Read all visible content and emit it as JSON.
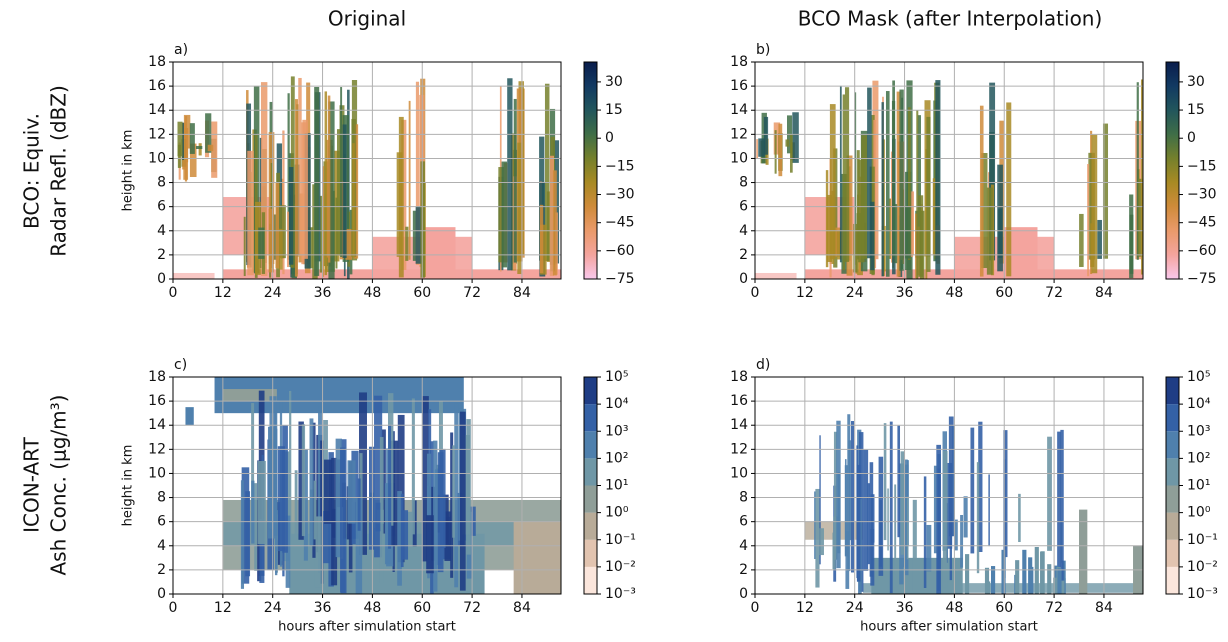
{
  "column_titles": [
    "Original",
    "BCO Mask (after Interpolation)"
  ],
  "row_labels": [
    [
      "BCO: Equiv.",
      "Radar Refl. (dBZ)"
    ],
    [
      "ICON-ART",
      "Ash Conc. (μg/m³)"
    ]
  ],
  "chart_data": [
    {
      "type": "heatmap",
      "panel": "a)",
      "ylabel": "height in km",
      "xlim": [
        0,
        93.4
      ],
      "xticks": [
        0,
        12,
        24,
        36,
        48,
        60,
        72,
        84
      ],
      "ylim": [
        0,
        18
      ],
      "yticks": [
        0,
        2,
        4,
        6,
        8,
        10,
        12,
        14,
        16,
        18
      ],
      "grid": true,
      "colorbar": {
        "scale": "linear",
        "lim": [
          -75,
          40.6
        ],
        "ticks": [
          {
            "value": -75,
            "label": "−75"
          },
          {
            "value": -60,
            "label": "−60"
          },
          {
            "value": -45,
            "label": "−45"
          },
          {
            "value": -30,
            "label": "−30"
          },
          {
            "value": -15,
            "label": "−15"
          },
          0,
          15,
          30
        ],
        "colors": [
          "#f9c8ec",
          "#f4a49e",
          "#ea9a6a",
          "#cf8b3a",
          "#a88a24",
          "#75802c",
          "#3f6e47",
          "#22565c",
          "#123a62",
          "#0a1d4c"
        ]
      }
    },
    {
      "type": "heatmap",
      "panel": "b)",
      "xlim": [
        0,
        93.4
      ],
      "xticks": [
        0,
        12,
        24,
        36,
        48,
        60,
        72,
        84
      ],
      "ylim": [
        0,
        18
      ],
      "yticks": [
        0,
        2,
        4,
        6,
        8,
        10,
        12,
        14,
        16,
        18
      ],
      "grid": true,
      "colorbar": {
        "scale": "linear",
        "lim": [
          -75,
          40.6
        ],
        "ticks": [
          {
            "value": -75,
            "label": "−75"
          },
          {
            "value": -60,
            "label": "−60"
          },
          {
            "value": -45,
            "label": "−45"
          },
          {
            "value": -30,
            "label": "−30"
          },
          {
            "value": -15,
            "label": "−15"
          },
          0,
          15,
          30
        ],
        "colors": [
          "#f9c8ec",
          "#f4a49e",
          "#ea9a6a",
          "#cf8b3a",
          "#a88a24",
          "#75802c",
          "#3f6e47",
          "#22565c",
          "#123a62",
          "#0a1d4c"
        ]
      }
    },
    {
      "type": "heatmap",
      "panel": "c)",
      "ylabel": "height in km",
      "xlabel": "hours after simulation start",
      "xlim": [
        0,
        93.4
      ],
      "xticks": [
        0,
        12,
        24,
        36,
        48,
        60,
        72,
        84
      ],
      "ylim": [
        0,
        18
      ],
      "yticks": [
        0,
        2,
        4,
        6,
        8,
        10,
        12,
        14,
        16,
        18
      ],
      "grid": true,
      "colorbar": {
        "scale": "log",
        "lim": [
          0.001,
          100000
        ],
        "ticks": [
          {
            "value": 0.001,
            "label": "10⁻³"
          },
          {
            "value": 0.01,
            "label": "10⁻²"
          },
          {
            "value": 0.1,
            "label": "10⁻¹"
          },
          {
            "value": 1,
            "label": "10⁰"
          },
          {
            "value": 10,
            "label": "10¹"
          },
          {
            "value": 100,
            "label": "10²"
          },
          {
            "value": 1000,
            "label": "10³"
          },
          {
            "value": 10000,
            "label": "10⁴"
          },
          {
            "value": 100000,
            "label": "10⁵"
          }
        ],
        "colors": [
          "#fbe6dc",
          "#e2c4b0",
          "#b8ab98",
          "#8f9e98",
          "#6f97a6",
          "#4f80ad",
          "#3461a6",
          "#1f3d85"
        ]
      }
    },
    {
      "type": "heatmap",
      "panel": "d)",
      "xlabel": "hours after simulation start",
      "xlim": [
        0,
        93.4
      ],
      "xticks": [
        0,
        12,
        24,
        36,
        48,
        60,
        72,
        84
      ],
      "ylim": [
        0,
        18
      ],
      "yticks": [
        0,
        2,
        4,
        6,
        8,
        10,
        12,
        14,
        16,
        18
      ],
      "grid": true,
      "colorbar": {
        "scale": "log",
        "lim": [
          0.001,
          100000
        ],
        "ticks": [
          {
            "value": 0.001,
            "label": "10⁻³"
          },
          {
            "value": 0.01,
            "label": "10⁻²"
          },
          {
            "value": 0.1,
            "label": "10⁻¹"
          },
          {
            "value": 1,
            "label": "10⁰"
          },
          {
            "value": 10,
            "label": "10¹"
          },
          {
            "value": 100,
            "label": "10²"
          },
          {
            "value": 1000,
            "label": "10³"
          },
          {
            "value": 10000,
            "label": "10⁴"
          },
          {
            "value": 100000,
            "label": "10⁵"
          }
        ],
        "colors": [
          "#fbe6dc",
          "#e2c4b0",
          "#b8ab98",
          "#8f9e98",
          "#6f97a6",
          "#4f80ad",
          "#3461a6",
          "#1f3d85"
        ]
      }
    }
  ]
}
